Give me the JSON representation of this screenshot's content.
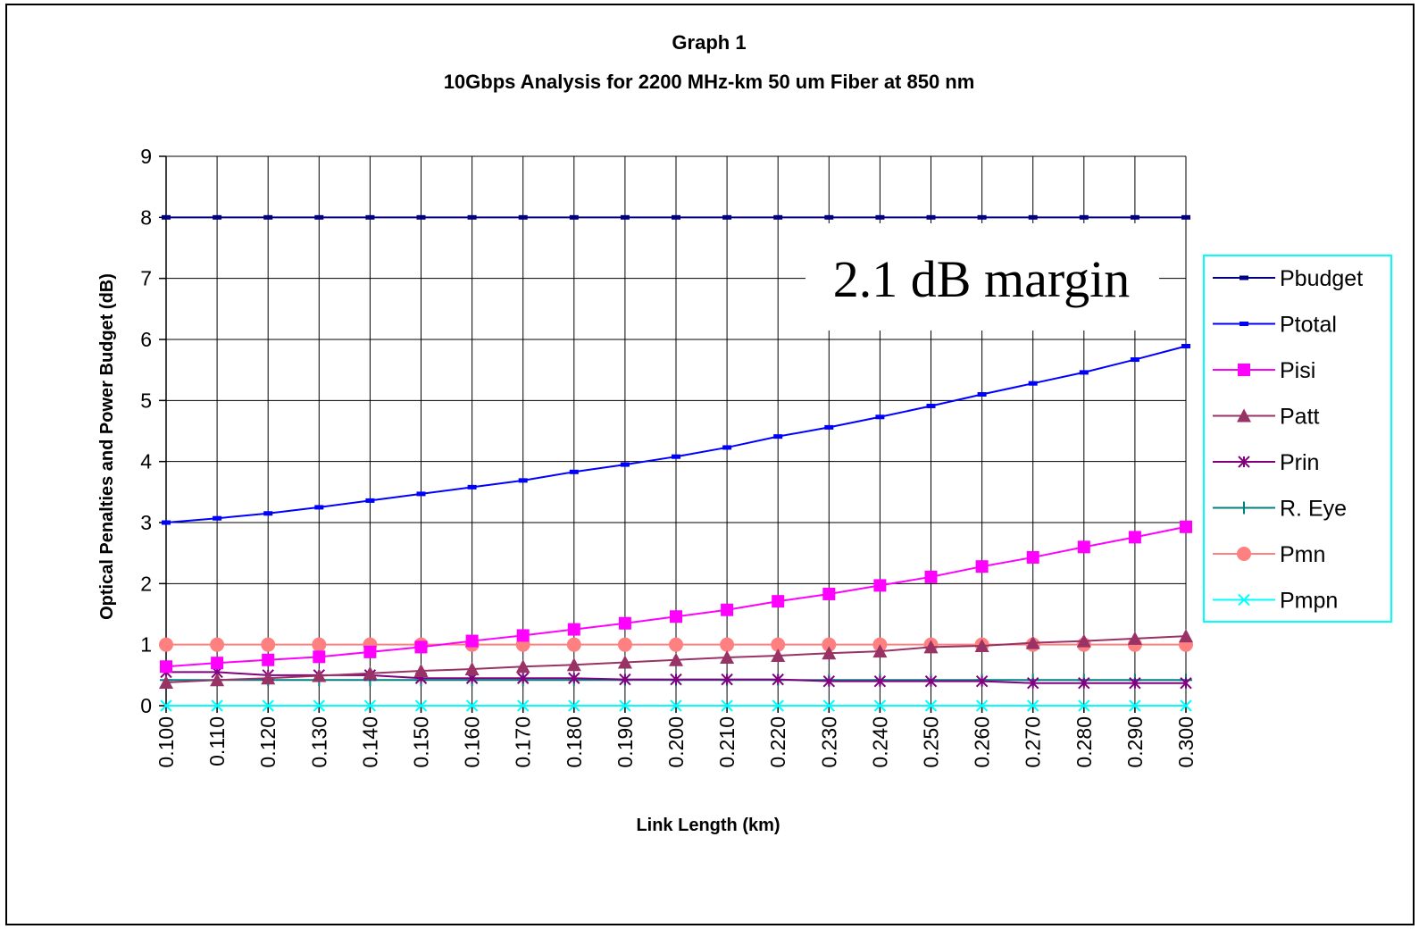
{
  "chart_data": {
    "type": "line",
    "title": "Graph 1",
    "subtitle": "10Gbps Analysis for 2200 MHz-km 50 um Fiber at 850 nm",
    "xlabel": "Link Length (km)",
    "ylabel": "Optical Penalties and Power Budget (dB)",
    "ylim": [
      0,
      9
    ],
    "y_ticks": [
      "0",
      "1",
      "2",
      "3",
      "4",
      "5",
      "6",
      "7",
      "8",
      "9"
    ],
    "grid": true,
    "legend_position": "right",
    "annotation": "2.1 dB margin",
    "categories": [
      "0.100",
      "0.110",
      "0.120",
      "0.130",
      "0.140",
      "0.150",
      "0.160",
      "0.170",
      "0.180",
      "0.190",
      "0.200",
      "0.210",
      "0.220",
      "0.230",
      "0.240",
      "0.250",
      "0.260",
      "0.270",
      "0.280",
      "0.290",
      "0.300"
    ],
    "series": [
      {
        "name": "Pbudget",
        "color": "#000080",
        "marker": "dash",
        "values": [
          8,
          8,
          8,
          8,
          8,
          8,
          8,
          8,
          8,
          8,
          8,
          8,
          8,
          8,
          8,
          8,
          8,
          8,
          8,
          8,
          8
        ]
      },
      {
        "name": "Ptotal",
        "color": "#0000ff",
        "marker": "dash",
        "values": [
          3.0,
          3.07,
          3.15,
          3.25,
          3.36,
          3.47,
          3.58,
          3.69,
          3.83,
          3.95,
          4.08,
          4.23,
          4.41,
          4.56,
          4.73,
          4.91,
          5.1,
          5.28,
          5.46,
          5.67,
          5.89
        ]
      },
      {
        "name": "Pisi",
        "color": "#ff00ff",
        "marker": "square",
        "values": [
          0.64,
          0.7,
          0.75,
          0.8,
          0.88,
          0.96,
          1.06,
          1.15,
          1.25,
          1.35,
          1.46,
          1.57,
          1.71,
          1.83,
          1.97,
          2.11,
          2.28,
          2.43,
          2.6,
          2.76,
          2.93
        ]
      },
      {
        "name": "Patt",
        "color": "#993366",
        "marker": "triangle",
        "values": [
          0.38,
          0.42,
          0.45,
          0.49,
          0.53,
          0.57,
          0.6,
          0.64,
          0.67,
          0.71,
          0.75,
          0.79,
          0.82,
          0.86,
          0.89,
          0.96,
          0.98,
          1.03,
          1.06,
          1.1,
          1.14
        ]
      },
      {
        "name": "Prin",
        "color": "#800080",
        "marker": "asterisk",
        "values": [
          0.55,
          0.55,
          0.5,
          0.5,
          0.5,
          0.45,
          0.45,
          0.45,
          0.45,
          0.43,
          0.43,
          0.43,
          0.43,
          0.4,
          0.4,
          0.4,
          0.4,
          0.37,
          0.37,
          0.37,
          0.37
        ]
      },
      {
        "name": "R. Eye",
        "color": "#008080",
        "marker": "plus",
        "values": [
          0.42,
          0.42,
          0.42,
          0.42,
          0.42,
          0.42,
          0.42,
          0.42,
          0.42,
          0.42,
          0.42,
          0.42,
          0.42,
          0.42,
          0.42,
          0.42,
          0.42,
          0.42,
          0.42,
          0.42,
          0.42
        ]
      },
      {
        "name": "Pmn",
        "color": "#ff8080",
        "marker": "circle",
        "values": [
          1,
          1,
          1,
          1,
          1,
          1,
          1,
          1,
          1,
          1,
          1,
          1,
          1,
          1,
          1,
          1,
          1,
          1,
          1,
          1,
          1
        ]
      },
      {
        "name": "Pmpn",
        "color": "#00ffff",
        "marker": "x",
        "values": [
          0,
          0,
          0,
          0,
          0,
          0,
          0,
          0,
          0,
          0,
          0,
          0,
          0,
          0,
          0,
          0,
          0,
          0,
          0,
          0,
          0
        ]
      }
    ]
  }
}
